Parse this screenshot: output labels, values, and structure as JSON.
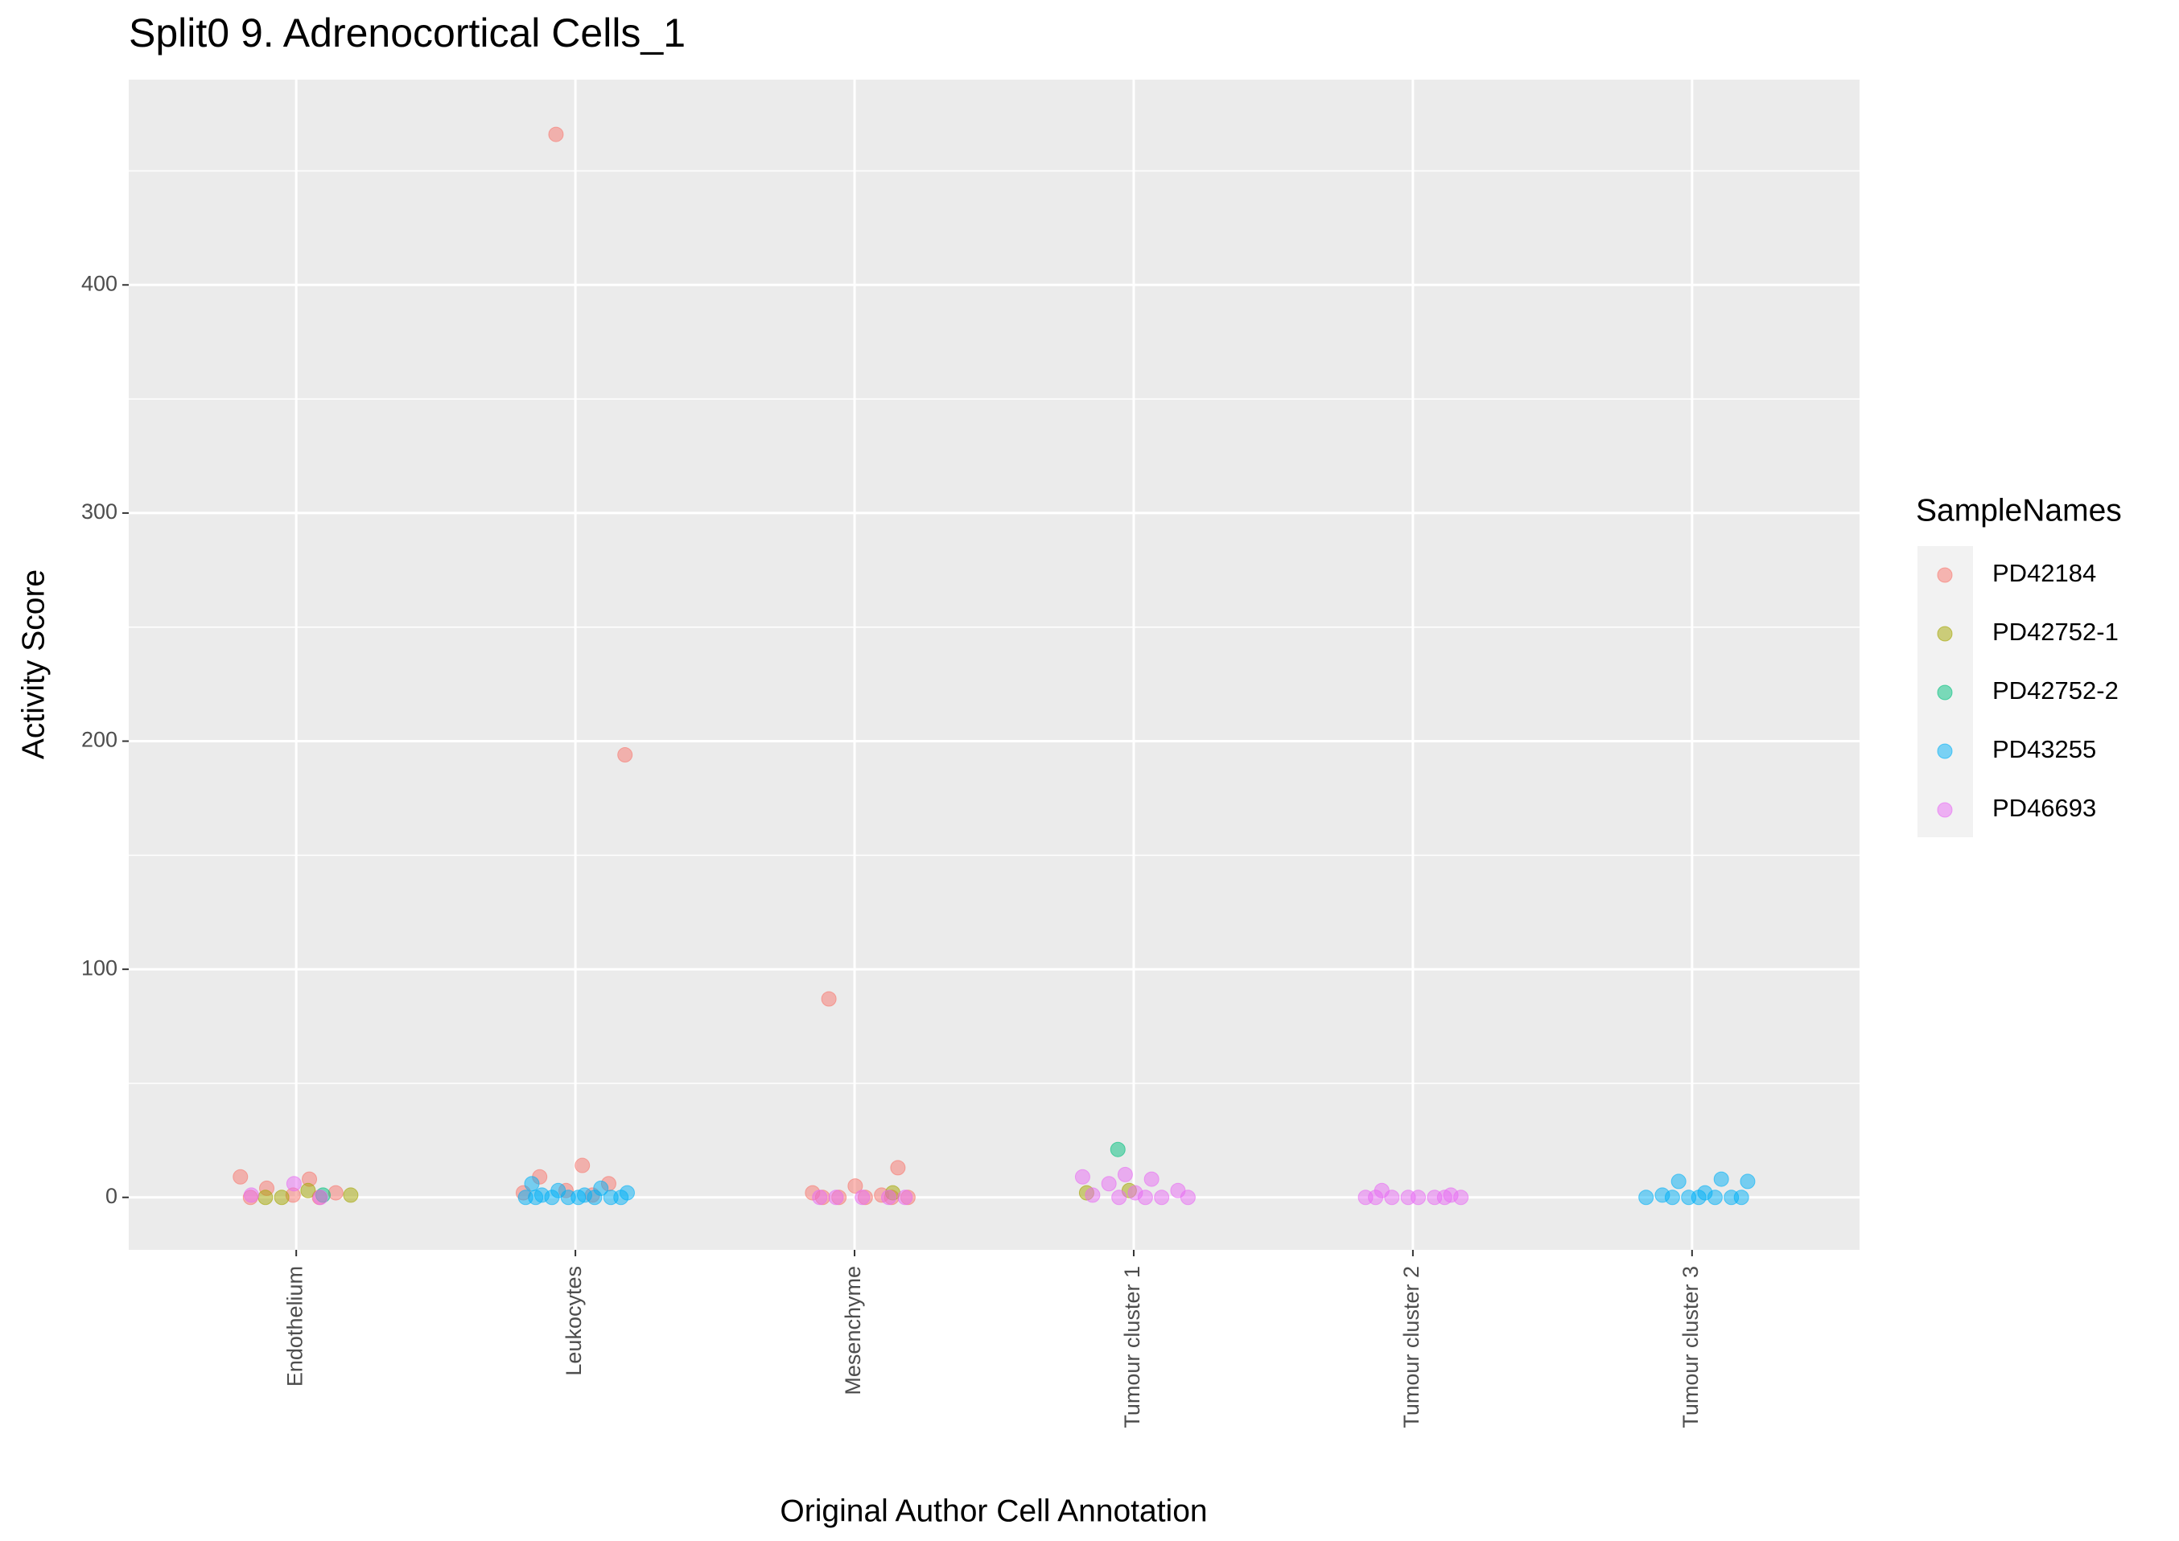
{
  "chart_data": {
    "type": "strip",
    "title": "Split0 9. Adrenocortical Cells_1",
    "x_label": "Original Author Cell Annotation",
    "y_label": "Activity Score",
    "legend_title": "SampleNames",
    "categories": [
      "Endothelium",
      "Leukocytes",
      "Mesenchyme",
      "Tumour cluster 1",
      "Tumour cluster 2",
      "Tumour cluster 3"
    ],
    "ylim": [
      -23,
      490
    ],
    "yticks": [
      0,
      100,
      200,
      300,
      400
    ],
    "grid": true,
    "series": [
      {
        "name": "PD42184",
        "color": "#F8766D",
        "x": [
          "Endothelium",
          "Endothelium",
          "Endothelium",
          "Endothelium",
          "Endothelium",
          "Endothelium",
          "Endothelium",
          "Leukocytes",
          "Leukocytes",
          "Leukocytes",
          "Leukocytes",
          "Leukocytes",
          "Leukocytes",
          "Leukocytes",
          "Leukocytes",
          "Mesenchyme",
          "Mesenchyme",
          "Mesenchyme",
          "Mesenchyme",
          "Mesenchyme",
          "Mesenchyme",
          "Mesenchyme",
          "Mesenchyme",
          "Mesenchyme",
          "Mesenchyme"
        ],
        "values": [
          9,
          8,
          4,
          2,
          1,
          0,
          0,
          466,
          194,
          14,
          9,
          6,
          3,
          2,
          1,
          87,
          13,
          5,
          2,
          1,
          0,
          0,
          0,
          0,
          0
        ]
      },
      {
        "name": "PD42752-1",
        "color": "#A3A500",
        "x": [
          "Endothelium",
          "Endothelium",
          "Endothelium",
          "Endothelium",
          "Mesenchyme",
          "Tumour cluster 1",
          "Tumour cluster 1"
        ],
        "values": [
          0,
          1,
          3,
          0,
          2,
          3,
          2
        ]
      },
      {
        "name": "PD42752-2",
        "color": "#00BF7D",
        "x": [
          "Endothelium",
          "Tumour cluster 1"
        ],
        "values": [
          1,
          21
        ]
      },
      {
        "name": "PD43255",
        "color": "#00B0F6",
        "x": [
          "Leukocytes",
          "Leukocytes",
          "Leukocytes",
          "Leukocytes",
          "Leukocytes",
          "Leukocytes",
          "Leukocytes",
          "Leukocytes",
          "Leukocytes",
          "Leukocytes",
          "Leukocytes",
          "Leukocytes",
          "Leukocytes",
          "Leukocytes",
          "Tumour cluster 3",
          "Tumour cluster 3",
          "Tumour cluster 3",
          "Tumour cluster 3",
          "Tumour cluster 3",
          "Tumour cluster 3",
          "Tumour cluster 3",
          "Tumour cluster 3",
          "Tumour cluster 3",
          "Tumour cluster 3",
          "Tumour cluster 3",
          "Tumour cluster 3"
        ],
        "values": [
          6,
          4,
          3,
          2,
          1,
          1,
          0,
          0,
          0,
          0,
          0,
          0,
          0,
          0,
          8,
          7,
          7,
          2,
          1,
          0,
          0,
          0,
          0,
          0,
          0,
          0
        ]
      },
      {
        "name": "PD46693",
        "color": "#E76BF3",
        "x": [
          "Endothelium",
          "Endothelium",
          "Endothelium",
          "Mesenchyme",
          "Mesenchyme",
          "Mesenchyme",
          "Mesenchyme",
          "Mesenchyme",
          "Tumour cluster 1",
          "Tumour cluster 1",
          "Tumour cluster 1",
          "Tumour cluster 1",
          "Tumour cluster 1",
          "Tumour cluster 1",
          "Tumour cluster 1",
          "Tumour cluster 1",
          "Tumour cluster 1",
          "Tumour cluster 1",
          "Tumour cluster 1",
          "Tumour cluster 2",
          "Tumour cluster 2",
          "Tumour cluster 2",
          "Tumour cluster 2",
          "Tumour cluster 2",
          "Tumour cluster 2",
          "Tumour cluster 2",
          "Tumour cluster 2",
          "Tumour cluster 2",
          "Tumour cluster 2"
        ],
        "values": [
          6,
          1,
          0,
          0,
          0,
          0,
          0,
          0,
          10,
          9,
          8,
          6,
          3,
          2,
          1,
          0,
          0,
          0,
          0,
          3,
          1,
          0,
          0,
          0,
          0,
          0,
          0,
          0,
          0
        ]
      }
    ]
  }
}
